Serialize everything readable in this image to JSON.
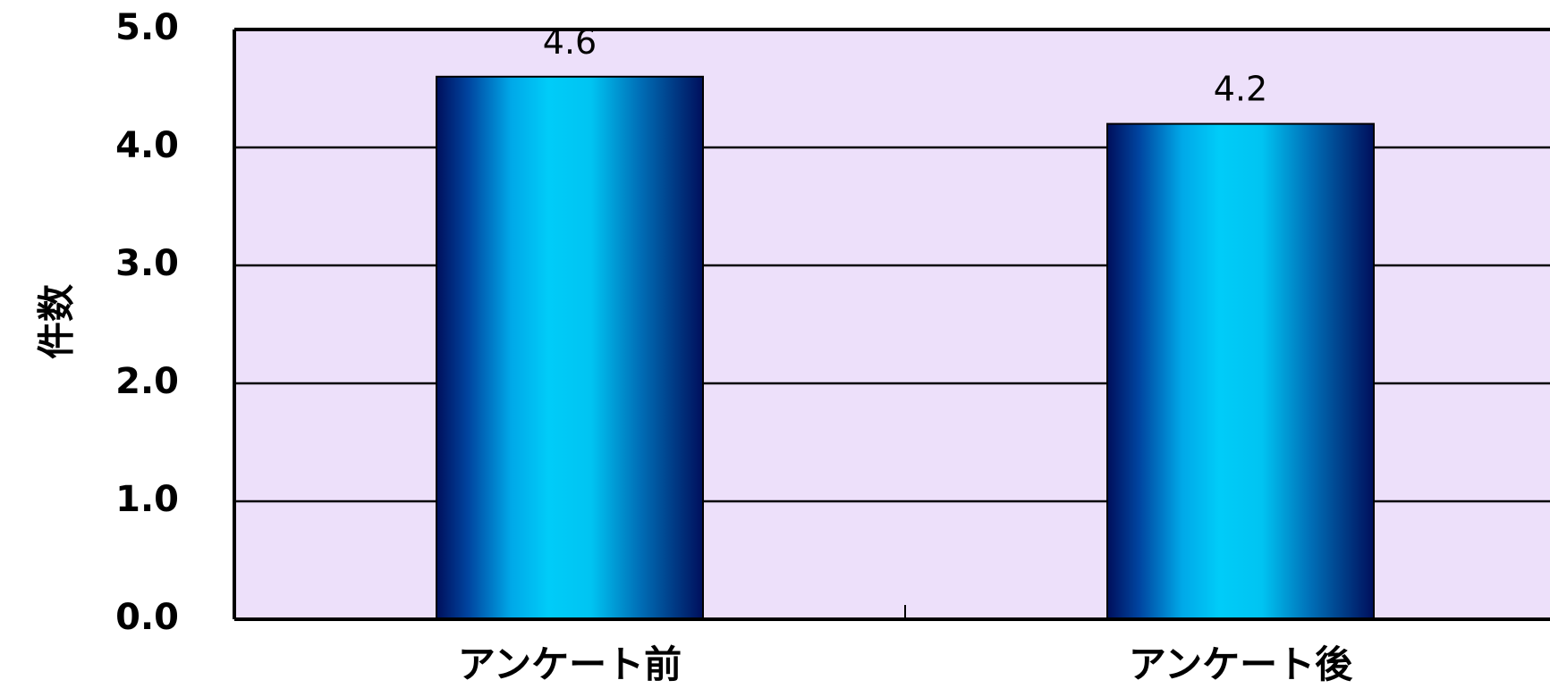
{
  "chart_data": {
    "type": "bar",
    "categories": [
      "アンケート前",
      "アンケート後"
    ],
    "values": [
      4.6,
      4.2
    ],
    "data_labels": [
      "4.6",
      "4.2"
    ],
    "ylabel": "件数",
    "xlabel": "",
    "ylim": [
      0,
      5
    ],
    "yticks": [
      "0.0",
      "1.0",
      "2.0",
      "3.0",
      "4.0",
      "5.0"
    ],
    "grid": true,
    "legend": "none",
    "colors": {
      "plot_background": "#ede0fa",
      "bar_edge": "#001060",
      "bar_center": "#00c8f5",
      "gridline": "#000000"
    }
  }
}
